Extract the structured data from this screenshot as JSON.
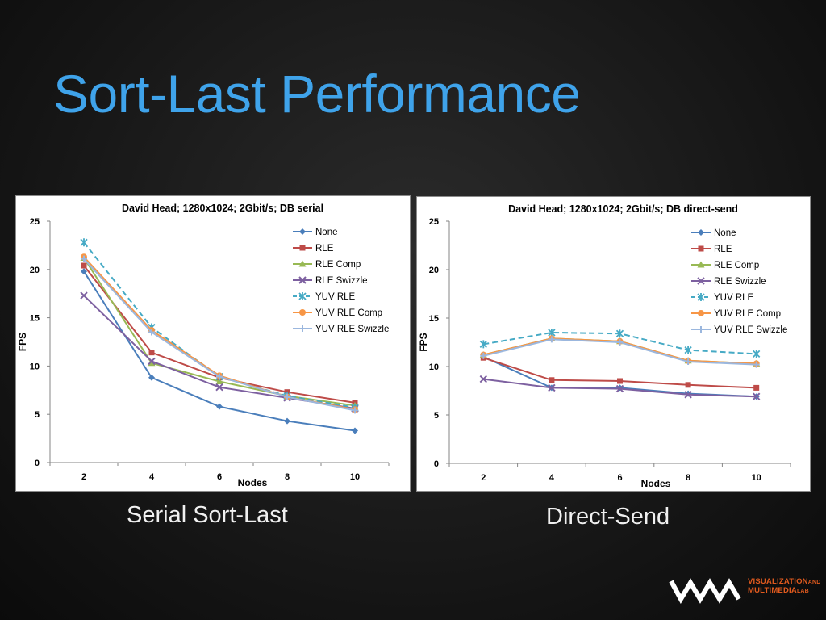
{
  "slide": {
    "title": "Sort-Last Performance",
    "captions": [
      "Serial Sort-Last",
      "Direct-Send"
    ],
    "logo": {
      "line1": "VISUALIZATION",
      "line1b": "AND",
      "line2": "MULTIMEDIA",
      "line2b": "LAB",
      "color": "#e05a1e"
    }
  },
  "chart_data": [
    {
      "type": "line",
      "title": "David Head; 1280x1024; 2Gbit/s; DB serial",
      "xlabel": "Nodes",
      "ylabel": "FPS",
      "x": [
        2,
        4,
        6,
        8,
        10
      ],
      "ylim": [
        0,
        25
      ],
      "yticks": [
        0,
        5,
        10,
        15,
        20,
        25
      ],
      "legend_position": "top-right",
      "series": [
        {
          "name": "None",
          "color": "#4a7ebb",
          "marker": "diamond",
          "dash": false,
          "values": [
            19.8,
            8.8,
            5.8,
            4.3,
            3.3
          ]
        },
        {
          "name": "RLE",
          "color": "#be4b48",
          "marker": "square",
          "dash": false,
          "values": [
            20.4,
            11.4,
            8.8,
            7.3,
            6.2
          ]
        },
        {
          "name": "RLE Comp",
          "color": "#98b954",
          "marker": "triangle",
          "dash": false,
          "values": [
            21.2,
            10.3,
            8.4,
            6.9,
            5.9
          ]
        },
        {
          "name": "RLE Swizzle",
          "color": "#7d60a0",
          "marker": "x",
          "dash": false,
          "values": [
            17.3,
            10.5,
            7.8,
            6.7,
            5.6
          ]
        },
        {
          "name": "YUV RLE",
          "color": "#46aac5",
          "marker": "star",
          "dash": true,
          "values": [
            22.8,
            14.0,
            8.9,
            6.9,
            5.7
          ]
        },
        {
          "name": "YUV RLE Comp",
          "color": "#f79646",
          "marker": "circle",
          "dash": false,
          "values": [
            21.3,
            13.7,
            9.0,
            6.8,
            5.5
          ]
        },
        {
          "name": "YUV RLE Swizzle",
          "color": "#9bb7de",
          "marker": "plus",
          "dash": false,
          "values": [
            21.1,
            13.5,
            8.9,
            6.8,
            5.4
          ]
        }
      ]
    },
    {
      "type": "line",
      "title": "David Head; 1280x1024; 2Gbit/s; DB direct-send",
      "xlabel": "Nodes",
      "ylabel": "FPS",
      "x": [
        2,
        4,
        6,
        8,
        10
      ],
      "ylim": [
        0,
        25
      ],
      "yticks": [
        0,
        5,
        10,
        15,
        20,
        25
      ],
      "legend_position": "top-right",
      "series": [
        {
          "name": "None",
          "color": "#4a7ebb",
          "marker": "diamond",
          "dash": false,
          "values": [
            11.0,
            7.8,
            7.8,
            7.2,
            6.9
          ]
        },
        {
          "name": "RLE",
          "color": "#be4b48",
          "marker": "square",
          "dash": false,
          "values": [
            10.9,
            8.6,
            8.5,
            8.1,
            7.8
          ]
        },
        {
          "name": "RLE Comp",
          "color": "#98b954",
          "marker": "triangle",
          "dash": false,
          "values": [
            11.2,
            12.9,
            12.6,
            10.6,
            10.3
          ]
        },
        {
          "name": "RLE Swizzle",
          "color": "#7d60a0",
          "marker": "x",
          "dash": false,
          "values": [
            8.7,
            7.8,
            7.7,
            7.1,
            6.9
          ]
        },
        {
          "name": "YUV RLE",
          "color": "#46aac5",
          "marker": "star",
          "dash": true,
          "values": [
            12.3,
            13.5,
            13.4,
            11.7,
            11.3
          ]
        },
        {
          "name": "YUV RLE Comp",
          "color": "#f79646",
          "marker": "circle",
          "dash": false,
          "values": [
            11.2,
            12.9,
            12.6,
            10.6,
            10.3
          ]
        },
        {
          "name": "YUV RLE Swizzle",
          "color": "#9bb7de",
          "marker": "plus",
          "dash": false,
          "values": [
            11.1,
            12.8,
            12.5,
            10.5,
            10.2
          ]
        }
      ]
    }
  ]
}
